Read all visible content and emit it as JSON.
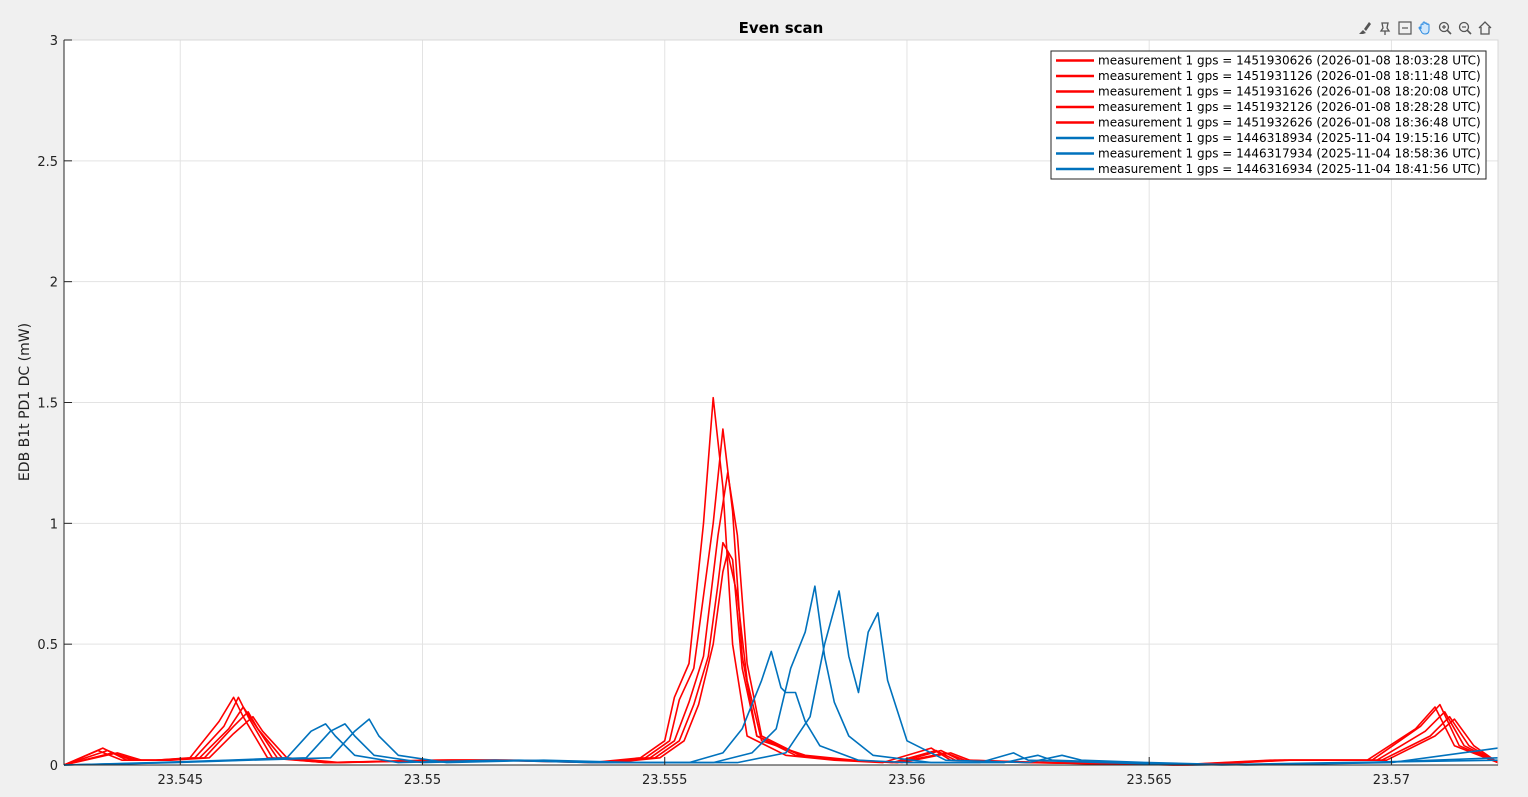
{
  "toolbar": {
    "icons": [
      "brush-icon",
      "data-tips-icon",
      "restore-view-icon",
      "pan-icon",
      "zoom-in-icon",
      "zoom-out-icon",
      "home-icon"
    ]
  },
  "chart_data": {
    "type": "line",
    "title": "Even scan",
    "xlabel": "",
    "ylabel": "EDB B1t PD1 DC (mW)",
    "xlim": [
      23.5426,
      23.5722
    ],
    "ylim": [
      0,
      3
    ],
    "xticks": [
      23.545,
      23.55,
      23.555,
      23.56,
      23.565,
      23.57
    ],
    "xtick_labels": [
      "23.545",
      "23.55",
      "23.555",
      "23.56",
      "23.565",
      "23.57"
    ],
    "yticks": [
      0,
      0.5,
      1,
      1.5,
      2,
      2.5,
      3
    ],
    "ytick_labels": [
      "0",
      "0.5",
      "1",
      "1.5",
      "2",
      "2.5",
      "3"
    ],
    "grid": true,
    "legend_position": "top-right",
    "series": [
      {
        "name": "measurement 1 gps = 1451930626 (2026-01-08 18:03:28 UTC)",
        "color": "#ff0000",
        "points": [
          [
            23.5426,
            0
          ],
          [
            23.5433,
            0.06
          ],
          [
            23.5438,
            0.02
          ],
          [
            23.5445,
            0.02
          ],
          [
            23.5452,
            0.03
          ],
          [
            23.5458,
            0.18
          ],
          [
            23.5461,
            0.28
          ],
          [
            23.5463,
            0.2
          ],
          [
            23.5468,
            0.03
          ],
          [
            23.548,
            0.01
          ],
          [
            23.5502,
            0.02
          ],
          [
            23.5515,
            0.02
          ],
          [
            23.5535,
            0.01
          ],
          [
            23.5545,
            0.03
          ],
          [
            23.555,
            0.1
          ],
          [
            23.5552,
            0.28
          ],
          [
            23.5555,
            0.42
          ],
          [
            23.5558,
            1.0
          ],
          [
            23.556,
            1.52
          ],
          [
            23.5562,
            1.15
          ],
          [
            23.5564,
            0.5
          ],
          [
            23.5567,
            0.12
          ],
          [
            23.5575,
            0.04
          ],
          [
            23.5585,
            0.02
          ],
          [
            23.5595,
            0.01
          ],
          [
            23.5605,
            0.07
          ],
          [
            23.5609,
            0.02
          ],
          [
            23.5625,
            0.01
          ],
          [
            23.5655,
            0.0
          ],
          [
            23.5675,
            0.02
          ],
          [
            23.5695,
            0.02
          ],
          [
            23.5705,
            0.15
          ],
          [
            23.5709,
            0.24
          ],
          [
            23.5713,
            0.08
          ],
          [
            23.5722,
            0.01
          ]
        ]
      },
      {
        "name": "measurement 1 gps = 1451931126 (2026-01-08 18:11:48 UTC)",
        "color": "#ff0000",
        "points": [
          [
            23.5426,
            0
          ],
          [
            23.5434,
            0.07
          ],
          [
            23.5439,
            0.02
          ],
          [
            23.5445,
            0.02
          ],
          [
            23.5453,
            0.03
          ],
          [
            23.5459,
            0.16
          ],
          [
            23.5462,
            0.28
          ],
          [
            23.5464,
            0.2
          ],
          [
            23.5469,
            0.03
          ],
          [
            23.548,
            0.01
          ],
          [
            23.5503,
            0.02
          ],
          [
            23.5516,
            0.02
          ],
          [
            23.5536,
            0.01
          ],
          [
            23.5546,
            0.03
          ],
          [
            23.5551,
            0.1
          ],
          [
            23.5553,
            0.27
          ],
          [
            23.5556,
            0.4
          ],
          [
            23.556,
            1.0
          ],
          [
            23.5562,
            1.39
          ],
          [
            23.5564,
            1.05
          ],
          [
            23.5566,
            0.45
          ],
          [
            23.5569,
            0.12
          ],
          [
            23.5577,
            0.04
          ],
          [
            23.5587,
            0.02
          ],
          [
            23.5597,
            0.01
          ],
          [
            23.5606,
            0.06
          ],
          [
            23.561,
            0.02
          ],
          [
            23.5626,
            0.01
          ],
          [
            23.5656,
            0.0
          ],
          [
            23.5676,
            0.02
          ],
          [
            23.5696,
            0.02
          ],
          [
            23.5706,
            0.16
          ],
          [
            23.571,
            0.25
          ],
          [
            23.5714,
            0.08
          ],
          [
            23.5722,
            0.01
          ]
        ]
      },
      {
        "name": "measurement 1 gps = 1451931626 (2026-01-08 18:20:08 UTC)",
        "color": "#ff0000",
        "points": [
          [
            23.5426,
            0
          ],
          [
            23.5435,
            0.06
          ],
          [
            23.544,
            0.02
          ],
          [
            23.5446,
            0.02
          ],
          [
            23.5454,
            0.03
          ],
          [
            23.546,
            0.15
          ],
          [
            23.5463,
            0.24
          ],
          [
            23.5465,
            0.18
          ],
          [
            23.547,
            0.03
          ],
          [
            23.5481,
            0.01
          ],
          [
            23.5504,
            0.02
          ],
          [
            23.5517,
            0.02
          ],
          [
            23.5537,
            0.01
          ],
          [
            23.5547,
            0.03
          ],
          [
            23.5552,
            0.1
          ],
          [
            23.5555,
            0.26
          ],
          [
            23.5558,
            0.45
          ],
          [
            23.5561,
            0.95
          ],
          [
            23.5563,
            1.21
          ],
          [
            23.5565,
            0.95
          ],
          [
            23.5567,
            0.42
          ],
          [
            23.557,
            0.12
          ],
          [
            23.5578,
            0.04
          ],
          [
            23.5588,
            0.02
          ],
          [
            23.5598,
            0.01
          ],
          [
            23.5607,
            0.06
          ],
          [
            23.5611,
            0.02
          ],
          [
            23.5627,
            0.01
          ],
          [
            23.5657,
            0.0
          ],
          [
            23.5677,
            0.02
          ],
          [
            23.5697,
            0.02
          ],
          [
            23.5707,
            0.14
          ],
          [
            23.5711,
            0.22
          ],
          [
            23.5715,
            0.08
          ],
          [
            23.5722,
            0.01
          ]
        ]
      },
      {
        "name": "measurement 1 gps = 1451932126 (2026-01-08 18:28:28 UTC)",
        "color": "#ff0000",
        "points": [
          [
            23.5426,
            0
          ],
          [
            23.5436,
            0.05
          ],
          [
            23.5441,
            0.02
          ],
          [
            23.5447,
            0.02
          ],
          [
            23.5455,
            0.03
          ],
          [
            23.5461,
            0.16
          ],
          [
            23.5464,
            0.22
          ],
          [
            23.5466,
            0.15
          ],
          [
            23.5471,
            0.03
          ],
          [
            23.5482,
            0.01
          ],
          [
            23.5505,
            0.02
          ],
          [
            23.5518,
            0.02
          ],
          [
            23.5538,
            0.01
          ],
          [
            23.5548,
            0.03
          ],
          [
            23.5553,
            0.1
          ],
          [
            23.5556,
            0.25
          ],
          [
            23.5559,
            0.45
          ],
          [
            23.5561,
            0.75
          ],
          [
            23.5562,
            0.92
          ],
          [
            23.5564,
            0.85
          ],
          [
            23.5566,
            0.4
          ],
          [
            23.5569,
            0.12
          ],
          [
            23.5578,
            0.04
          ],
          [
            23.5588,
            0.02
          ],
          [
            23.5598,
            0.01
          ],
          [
            23.5608,
            0.05
          ],
          [
            23.5612,
            0.02
          ],
          [
            23.5628,
            0.01
          ],
          [
            23.5658,
            0.0
          ],
          [
            23.5678,
            0.02
          ],
          [
            23.5698,
            0.02
          ],
          [
            23.5708,
            0.12
          ],
          [
            23.5712,
            0.2
          ],
          [
            23.5716,
            0.08
          ],
          [
            23.5722,
            0.01
          ]
        ]
      },
      {
        "name": "measurement 1 gps = 1451932626 (2026-01-08 18:36:48 UTC)",
        "color": "#ff0000",
        "points": [
          [
            23.5426,
            0
          ],
          [
            23.5437,
            0.05
          ],
          [
            23.5442,
            0.02
          ],
          [
            23.5448,
            0.02
          ],
          [
            23.5456,
            0.03
          ],
          [
            23.5461,
            0.13
          ],
          [
            23.5465,
            0.2
          ],
          [
            23.5467,
            0.14
          ],
          [
            23.5472,
            0.03
          ],
          [
            23.5483,
            0.01
          ],
          [
            23.5506,
            0.02
          ],
          [
            23.5519,
            0.02
          ],
          [
            23.5539,
            0.01
          ],
          [
            23.5549,
            0.03
          ],
          [
            23.5554,
            0.1
          ],
          [
            23.5557,
            0.25
          ],
          [
            23.556,
            0.5
          ],
          [
            23.5562,
            0.8
          ],
          [
            23.5563,
            0.88
          ],
          [
            23.5565,
            0.7
          ],
          [
            23.5567,
            0.35
          ],
          [
            23.557,
            0.1
          ],
          [
            23.5579,
            0.04
          ],
          [
            23.5589,
            0.02
          ],
          [
            23.5599,
            0.01
          ],
          [
            23.5609,
            0.05
          ],
          [
            23.5613,
            0.02
          ],
          [
            23.5629,
            0.01
          ],
          [
            23.5659,
            0.0
          ],
          [
            23.5679,
            0.02
          ],
          [
            23.5699,
            0.02
          ],
          [
            23.5709,
            0.12
          ],
          [
            23.5713,
            0.19
          ],
          [
            23.5717,
            0.08
          ],
          [
            23.5722,
            0.01
          ]
        ]
      },
      {
        "name": "measurement 1 gps = 1446318934 (2025-11-04 19:15:16 UTC)",
        "color": "#0072bd",
        "points": [
          [
            23.5426,
            0
          ],
          [
            23.5445,
            0.01
          ],
          [
            23.546,
            0.02
          ],
          [
            23.5472,
            0.03
          ],
          [
            23.5477,
            0.14
          ],
          [
            23.548,
            0.17
          ],
          [
            23.5482,
            0.12
          ],
          [
            23.5486,
            0.04
          ],
          [
            23.5495,
            0.01
          ],
          [
            23.5515,
            0.02
          ],
          [
            23.5535,
            0.01
          ],
          [
            23.5555,
            0.01
          ],
          [
            23.5562,
            0.05
          ],
          [
            23.5566,
            0.15
          ],
          [
            23.557,
            0.35
          ],
          [
            23.5572,
            0.47
          ],
          [
            23.5574,
            0.32
          ],
          [
            23.5575,
            0.3
          ],
          [
            23.5577,
            0.3
          ],
          [
            23.5579,
            0.18
          ],
          [
            23.5582,
            0.08
          ],
          [
            23.559,
            0.02
          ],
          [
            23.56,
            0.01
          ],
          [
            23.5615,
            0.01
          ],
          [
            23.5622,
            0.05
          ],
          [
            23.5625,
            0.02
          ],
          [
            23.564,
            0.01
          ],
          [
            23.566,
            0.0
          ],
          [
            23.569,
            0.01
          ],
          [
            23.5722,
            0.02
          ]
        ]
      },
      {
        "name": "measurement 1 gps = 1446317934 (2025-11-04 18:58:36 UTC)",
        "color": "#0072bd",
        "points": [
          [
            23.5426,
            0
          ],
          [
            23.5447,
            0.01
          ],
          [
            23.5462,
            0.02
          ],
          [
            23.5476,
            0.03
          ],
          [
            23.5481,
            0.14
          ],
          [
            23.5484,
            0.17
          ],
          [
            23.5486,
            0.12
          ],
          [
            23.549,
            0.04
          ],
          [
            23.55,
            0.01
          ],
          [
            23.552,
            0.02
          ],
          [
            23.554,
            0.01
          ],
          [
            23.556,
            0.01
          ],
          [
            23.5568,
            0.05
          ],
          [
            23.5573,
            0.15
          ],
          [
            23.5576,
            0.4
          ],
          [
            23.5579,
            0.55
          ],
          [
            23.5581,
            0.74
          ],
          [
            23.5583,
            0.45
          ],
          [
            23.5585,
            0.26
          ],
          [
            23.5588,
            0.12
          ],
          [
            23.5593,
            0.04
          ],
          [
            23.5605,
            0.01
          ],
          [
            23.562,
            0.01
          ],
          [
            23.5627,
            0.04
          ],
          [
            23.563,
            0.02
          ],
          [
            23.5645,
            0.01
          ],
          [
            23.5665,
            0.0
          ],
          [
            23.5695,
            0.01
          ],
          [
            23.5722,
            0.03
          ]
        ]
      },
      {
        "name": "measurement 1 gps = 1446316934 (2025-11-04 18:41:56 UTC)",
        "color": "#0072bd",
        "points": [
          [
            23.5426,
            0
          ],
          [
            23.5449,
            0.01
          ],
          [
            23.5464,
            0.02
          ],
          [
            23.5481,
            0.03
          ],
          [
            23.5486,
            0.14
          ],
          [
            23.5489,
            0.19
          ],
          [
            23.5491,
            0.12
          ],
          [
            23.5495,
            0.04
          ],
          [
            23.5505,
            0.01
          ],
          [
            23.5525,
            0.02
          ],
          [
            23.5545,
            0.01
          ],
          [
            23.5565,
            0.01
          ],
          [
            23.5575,
            0.05
          ],
          [
            23.558,
            0.2
          ],
          [
            23.5583,
            0.5
          ],
          [
            23.5586,
            0.72
          ],
          [
            23.5588,
            0.45
          ],
          [
            23.559,
            0.3
          ],
          [
            23.5592,
            0.55
          ],
          [
            23.5594,
            0.63
          ],
          [
            23.5596,
            0.35
          ],
          [
            23.56,
            0.1
          ],
          [
            23.5608,
            0.02
          ],
          [
            23.5625,
            0.01
          ],
          [
            23.5632,
            0.04
          ],
          [
            23.5636,
            0.02
          ],
          [
            23.565,
            0.01
          ],
          [
            23.567,
            0.0
          ],
          [
            23.57,
            0.01
          ],
          [
            23.5722,
            0.07
          ]
        ]
      }
    ]
  }
}
